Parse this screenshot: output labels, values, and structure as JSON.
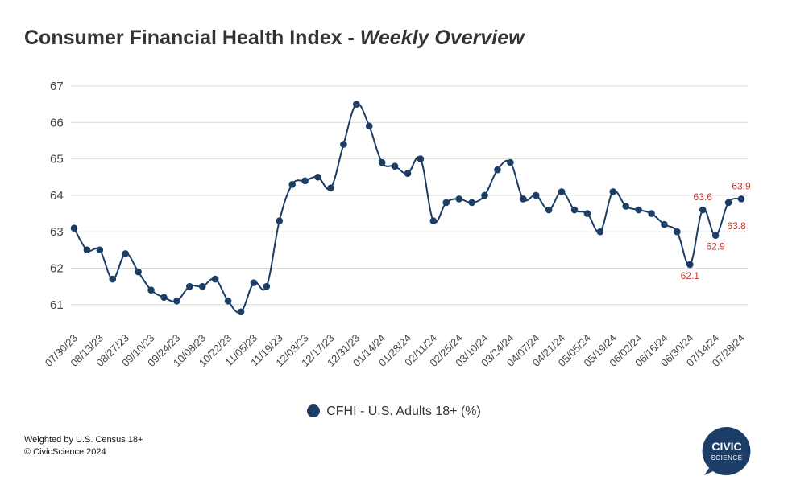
{
  "title": {
    "main": "Consumer Financial Health Index - ",
    "sub": "Weekly Overview"
  },
  "legend": {
    "label": "CFHI - U.S. Adults 18+ (%)"
  },
  "footnote": {
    "line1": "Weighted by U.S. Census 18+",
    "line2": "© CivicScience 2024"
  },
  "logo": {
    "line1": "CIVIC",
    "line2": "SCIENCE"
  },
  "colors": {
    "series": "#1b3d66",
    "annotation": "#c0392b",
    "grid": "#d9d9d9",
    "axis_text": "#444444",
    "logo": "#1b3d66"
  },
  "chart_data": {
    "type": "line",
    "title": "Consumer Financial Health Index - Weekly Overview",
    "xlabel": "",
    "ylabel": "",
    "ylim": [
      60.8,
      67
    ],
    "yticks": [
      61,
      62,
      63,
      64,
      65,
      66,
      67
    ],
    "grid": true,
    "legend_position": "bottom",
    "x": [
      "07/30/23",
      "08/06/23",
      "08/13/23",
      "08/20/23",
      "08/27/23",
      "09/03/23",
      "09/10/23",
      "09/17/23",
      "09/24/23",
      "10/01/23",
      "10/08/23",
      "10/15/23",
      "10/22/23",
      "10/29/23",
      "11/05/23",
      "11/12/23",
      "11/19/23",
      "11/26/23",
      "12/03/23",
      "12/10/23",
      "12/17/23",
      "12/24/23",
      "12/31/23",
      "01/07/24",
      "01/14/24",
      "01/21/24",
      "01/28/24",
      "02/04/24",
      "02/11/24",
      "02/18/24",
      "02/25/24",
      "03/03/24",
      "03/10/24",
      "03/17/24",
      "03/24/24",
      "03/31/24",
      "04/07/24",
      "04/14/24",
      "04/21/24",
      "04/28/24",
      "05/05/24",
      "05/12/24",
      "05/19/24",
      "05/26/24",
      "06/02/24",
      "06/09/24",
      "06/16/24",
      "06/23/24",
      "06/30/24",
      "07/07/24",
      "07/14/24",
      "07/21/24",
      "07/28/24"
    ],
    "xtick_labels": [
      "07/30/23",
      "08/13/23",
      "08/27/23",
      "09/10/23",
      "09/24/23",
      "10/08/23",
      "10/22/23",
      "11/05/23",
      "11/19/23",
      "12/03/23",
      "12/17/23",
      "12/31/23",
      "01/14/24",
      "01/28/24",
      "02/11/24",
      "02/25/24",
      "03/10/24",
      "03/24/24",
      "04/07/24",
      "04/21/24",
      "05/05/24",
      "05/19/24",
      "06/02/24",
      "06/16/24",
      "06/30/24",
      "07/14/24",
      "07/28/24"
    ],
    "series": [
      {
        "name": "CFHI - U.S. Adults 18+ (%)",
        "values": [
          63.1,
          62.5,
          62.5,
          61.7,
          62.4,
          61.9,
          61.4,
          61.2,
          61.1,
          61.5,
          61.5,
          61.7,
          61.1,
          60.8,
          61.6,
          61.5,
          63.3,
          64.3,
          64.4,
          64.5,
          64.2,
          65.4,
          66.5,
          65.9,
          64.9,
          64.8,
          64.6,
          65.0,
          63.3,
          63.8,
          63.9,
          63.8,
          64.0,
          64.7,
          64.9,
          63.9,
          64.0,
          63.6,
          64.1,
          63.6,
          63.5,
          63.0,
          64.1,
          63.7,
          63.6,
          63.5,
          63.2,
          63.0,
          62.1,
          63.6,
          62.9,
          63.8,
          63.9
        ]
      }
    ],
    "annotations": [
      {
        "x": "06/30/24",
        "text": "62.1",
        "position": "below"
      },
      {
        "x": "07/07/24",
        "text": "63.6",
        "position": "above"
      },
      {
        "x": "07/14/24",
        "text": "62.9",
        "position": "below"
      },
      {
        "x": "07/21/24",
        "text": "63.8",
        "position": "right-below"
      },
      {
        "x": "07/28/24",
        "text": "63.9",
        "position": "above"
      }
    ]
  }
}
